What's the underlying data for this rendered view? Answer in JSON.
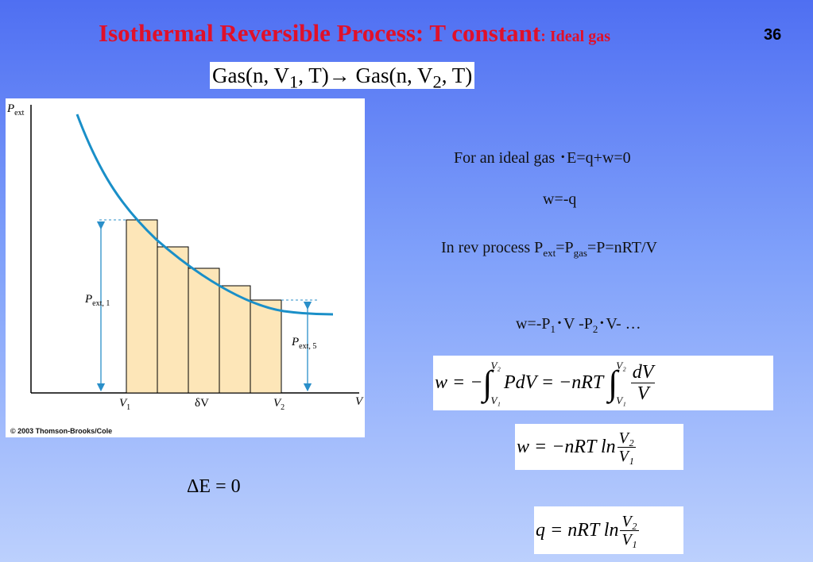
{
  "slide": {
    "title": "Isothermal Reversible Process: T constant",
    "title_suffix": ": Ideal gas",
    "number": "36"
  },
  "process_equation": {
    "left": "Gas(n, V",
    "sub1": "1",
    "mid": ", T)→ Gas(n, V",
    "sub2": "2",
    "right": ", T)"
  },
  "graph": {
    "y_label": "P",
    "y_label_sub": "ext",
    "x_axis_label": "V",
    "tick_v1": "V",
    "tick_v1_sub": "1",
    "tick_dv": "δV",
    "tick_v2": "V",
    "tick_v2_sub": "2",
    "label_p1": "P",
    "label_p1_sub": "ext, 1",
    "label_p5": "P",
    "label_p5_sub": "ext, 5",
    "copyright": "© 2003 Thomson-Brooks/Cole",
    "colors": {
      "curve": "#1a8fc8",
      "bar_fill": "#fde6b8",
      "arrow": "#2a8fc9"
    }
  },
  "text": {
    "line1": "For an ideal gas ･E=q+w=0",
    "line2": "w=-q",
    "line3_a": "In rev process P",
    "line3_sub1": "ext",
    "line3_b": "=P",
    "line3_sub2": "gas",
    "line3_c": "=P=nRT/V",
    "line4_a": "w=-P",
    "line4_sub1": "1",
    "line4_b": "･V -P",
    "line4_sub2": "2",
    "line4_c": "･V- …"
  },
  "equations": {
    "w_integral_lhs": "w = −",
    "w_integral_mid": "PdV = −nRT",
    "lim_upper": "V₂",
    "lim_lower": "V₁",
    "dv_num": "dV",
    "dv_den": "V",
    "w_ln_lhs": "w = −nRT ln",
    "q_ln_lhs": "q = nRT ln",
    "ratio_num": "V₂",
    "ratio_den": "V₁",
    "delta_e": "ΔE = 0"
  }
}
